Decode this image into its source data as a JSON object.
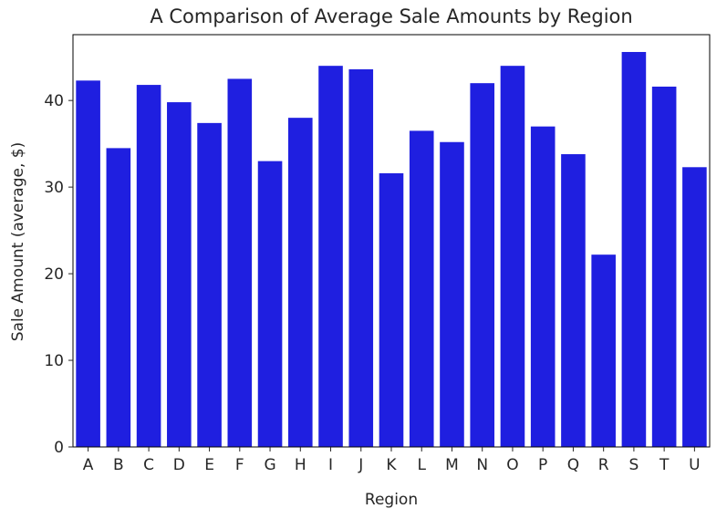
{
  "chart_data": {
    "type": "bar",
    "title": "A Comparison of Average Sale Amounts by Region",
    "xlabel": "Region",
    "ylabel": "Sale Amount (average, $)",
    "categories": [
      "A",
      "B",
      "C",
      "D",
      "E",
      "F",
      "G",
      "H",
      "I",
      "J",
      "K",
      "L",
      "M",
      "N",
      "O",
      "P",
      "Q",
      "R",
      "S",
      "T",
      "U"
    ],
    "values": [
      42.3,
      34.5,
      41.8,
      39.8,
      37.4,
      42.5,
      33.0,
      38.0,
      44.0,
      43.6,
      31.6,
      36.5,
      35.2,
      42.0,
      44.0,
      37.0,
      33.8,
      22.2,
      45.6,
      41.6,
      32.3
    ],
    "ylim": [
      0,
      47.6
    ],
    "yticks": [
      0,
      10,
      20,
      30,
      40
    ],
    "bar_color": "#1f1fe0",
    "grid": false,
    "legend": "none"
  }
}
